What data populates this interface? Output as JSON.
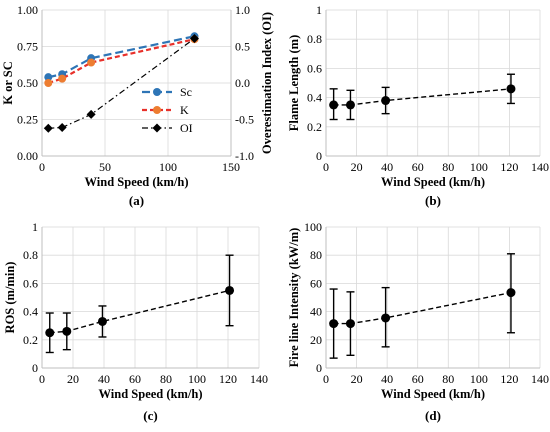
{
  "chart_data": [
    {
      "panel_label": "(a)",
      "type": "line",
      "xlabel": "Wind Speed (km/h)",
      "ylabel": "K or SC",
      "y2label": "Overestimation Index  (OI)",
      "xlim": [
        0,
        150
      ],
      "ylim": [
        0,
        1.0
      ],
      "y2lim": [
        -1.0,
        1.0
      ],
      "xticks": [
        "0",
        "50",
        "100",
        "150"
      ],
      "yticks": [
        "0.00",
        "0.25",
        "0.50",
        "0.75",
        "1.00"
      ],
      "y2ticks": [
        "-1.0",
        "-0.5",
        "0.0",
        "0.5",
        "1.0"
      ],
      "grid": true,
      "legend_position": "right-center",
      "x": [
        5,
        16,
        39,
        121
      ],
      "series": [
        {
          "name": "Sc",
          "axis": "left",
          "values": [
            0.54,
            0.56,
            0.67,
            0.82
          ],
          "color": "#2E75B6",
          "style": "dashed",
          "marker": "circle"
        },
        {
          "name": "K",
          "axis": "left",
          "values": [
            0.5,
            0.53,
            0.64,
            0.8
          ],
          "color": "#ED7D31",
          "style": "dashed-red",
          "marker": "circle"
        },
        {
          "name": "OI",
          "axis": "right",
          "values": [
            -0.62,
            -0.61,
            -0.43,
            0.61
          ],
          "color": "#000000",
          "style": "dashdot",
          "marker": "diamond"
        }
      ]
    },
    {
      "panel_label": "(b)",
      "type": "scatter",
      "xlabel": "Wind Speed (km/h)",
      "ylabel": "Flame Length (m)",
      "xlim": [
        0,
        140
      ],
      "ylim": [
        0,
        1.0
      ],
      "xticks": [
        "0",
        "20",
        "40",
        "60",
        "80",
        "100",
        "120",
        "140"
      ],
      "yticks": [
        "0",
        "0.2",
        "0.4",
        "0.6",
        "0.8",
        "1"
      ],
      "grid": true,
      "x": [
        5,
        16,
        39,
        121
      ],
      "values": [
        0.35,
        0.35,
        0.38,
        0.46
      ],
      "err_low": [
        0.25,
        0.25,
        0.29,
        0.36
      ],
      "err_high": [
        0.46,
        0.45,
        0.47,
        0.56
      ]
    },
    {
      "panel_label": "(c)",
      "type": "scatter",
      "xlabel": "Wind Speed (km/h)",
      "ylabel": "ROS (m/min)",
      "xlim": [
        0,
        140
      ],
      "ylim": [
        0,
        1.0
      ],
      "xticks": [
        "0",
        "20",
        "40",
        "60",
        "80",
        "100",
        "120",
        "140"
      ],
      "yticks": [
        "0",
        "0.2",
        "0.4",
        "0.6",
        "0.8",
        "1"
      ],
      "grid": true,
      "x": [
        5,
        16,
        39,
        121
      ],
      "values": [
        0.25,
        0.26,
        0.33,
        0.55
      ],
      "err_low": [
        0.11,
        0.13,
        0.22,
        0.3
      ],
      "err_high": [
        0.39,
        0.39,
        0.44,
        0.8
      ]
    },
    {
      "panel_label": "(d)",
      "type": "scatter",
      "xlabel": "Wind Speed (km/h)",
      "ylabel": "Fire line Intensity (kW/m)",
      "xlim": [
        0,
        140
      ],
      "ylim": [
        0,
        100
      ],
      "xticks": [
        "0",
        "20",
        "40",
        "60",
        "80",
        "100",
        "120",
        "140"
      ],
      "yticks": [
        "0",
        "20",
        "40",
        "60",
        "80",
        "100"
      ],
      "grid": true,
      "x": [
        5,
        16,
        39,
        121
      ],
      "values": [
        31.5,
        31.5,
        35.5,
        53.5
      ],
      "err_low": [
        7,
        9,
        15,
        25
      ],
      "err_high": [
        56,
        54,
        57,
        81
      ]
    }
  ]
}
